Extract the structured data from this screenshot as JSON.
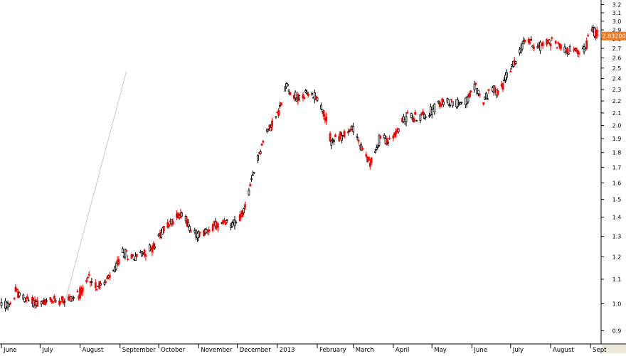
{
  "chart_data": {
    "type": "candlestick",
    "title": "",
    "xlabel": "",
    "ylabel": "",
    "y_scale": "log",
    "ylim": [
      0.86,
      3.24
    ],
    "grid": false,
    "last_price_label": "2.83200",
    "colors": {
      "up_body": "#ffffff",
      "up_outline": "#000000",
      "down_body": "#ff0000",
      "down_outline": "#ff0000",
      "trendline": "#c8c8d2",
      "price_tag": "#f07820",
      "axis": "#000000"
    },
    "y_ticks": [
      "0.9",
      "1.0",
      "1.1",
      "1.2",
      "1.3",
      "1.4",
      "1.5",
      "1.6",
      "1.7",
      "1.8",
      "1.9",
      "2.0",
      "2.1",
      "2.2",
      "2.3",
      "2.4",
      "2.5",
      "2.6",
      "2.7",
      "2.8",
      "2.9",
      "3.0",
      "3.1",
      "3.2"
    ],
    "x_labels": [
      "June",
      "July",
      "August",
      "September",
      "October",
      "November",
      "December",
      "2013",
      "February",
      "March",
      "April",
      "May",
      "June",
      "July",
      "August",
      "Sept"
    ],
    "trendline": {
      "start": [
        "Jul 20",
        1.0
      ],
      "end": [
        "Sep 6",
        2.47
      ]
    },
    "anchors": [
      [
        "Jun 1",
        1.0
      ],
      [
        "Jun 8",
        0.99
      ],
      [
        "Jun 12",
        1.05
      ],
      [
        "Jun 18",
        1.02
      ],
      [
        "Jun 25",
        1.01
      ],
      [
        "Jul 2",
        1.0
      ],
      [
        "Jul 10",
        1.01
      ],
      [
        "Jul 18",
        1.02
      ],
      [
        "Jul 25",
        1.02
      ],
      [
        "Aug 3",
        1.05
      ],
      [
        "Aug 8",
        1.11
      ],
      [
        "Aug 14",
        1.07
      ],
      [
        "Aug 20",
        1.08
      ],
      [
        "Aug 27",
        1.13
      ],
      [
        "Sep 3",
        1.22
      ],
      [
        "Sep 12",
        1.2
      ],
      [
        "Sep 20",
        1.22
      ],
      [
        "Sep 28",
        1.25
      ],
      [
        "Oct 5",
        1.34
      ],
      [
        "Oct 12",
        1.38
      ],
      [
        "Oct 19",
        1.43
      ],
      [
        "Oct 26",
        1.33
      ],
      [
        "Nov 3",
        1.3
      ],
      [
        "Nov 10",
        1.35
      ],
      [
        "Nov 20",
        1.36
      ],
      [
        "Nov 28",
        1.37
      ],
      [
        "Dec 5",
        1.41
      ],
      [
        "Dec 12",
        1.6
      ],
      [
        "Dec 18",
        1.8
      ],
      [
        "Dec 24",
        1.95
      ],
      [
        "Jan 2",
        2.1
      ],
      [
        "Jan 8",
        2.35
      ],
      [
        "Jan 12",
        2.28
      ],
      [
        "Jan 16",
        2.22
      ],
      [
        "Jan 22",
        2.25
      ],
      [
        "Jan 31",
        2.25
      ],
      [
        "Feb 6",
        2.1
      ],
      [
        "Feb 12",
        1.88
      ],
      [
        "Feb 20",
        1.92
      ],
      [
        "Feb 26",
        1.95
      ],
      [
        "Mar 2",
        2.0
      ],
      [
        "Mar 6",
        1.85
      ],
      [
        "Mar 12",
        1.75
      ],
      [
        "Mar 16",
        1.73
      ],
      [
        "Mar 22",
        1.92
      ],
      [
        "Mar 30",
        1.87
      ],
      [
        "Apr 5",
        1.98
      ],
      [
        "Apr 12",
        2.08
      ],
      [
        "Apr 20",
        2.06
      ],
      [
        "Apr 28",
        2.1
      ],
      [
        "May 4",
        2.15
      ],
      [
        "May 12",
        2.2
      ],
      [
        "May 20",
        2.18
      ],
      [
        "May 28",
        2.2
      ],
      [
        "Jun 4",
        2.33
      ],
      [
        "Jun 10",
        2.18
      ],
      [
        "Jun 16",
        2.32
      ],
      [
        "Jun 22",
        2.25
      ],
      [
        "Jun 28",
        2.43
      ],
      [
        "Jul 4",
        2.55
      ],
      [
        "Jul 10",
        2.73
      ],
      [
        "Jul 14",
        2.8
      ],
      [
        "Jul 20",
        2.72
      ],
      [
        "Jul 28",
        2.75
      ],
      [
        "Aug 3",
        2.78
      ],
      [
        "Aug 10",
        2.7
      ],
      [
        "Aug 18",
        2.68
      ],
      [
        "Aug 22",
        2.65
      ],
      [
        "Aug 28",
        2.7
      ],
      [
        "Sep 2",
        2.93
      ],
      [
        "Sep 6",
        2.83
      ]
    ]
  }
}
